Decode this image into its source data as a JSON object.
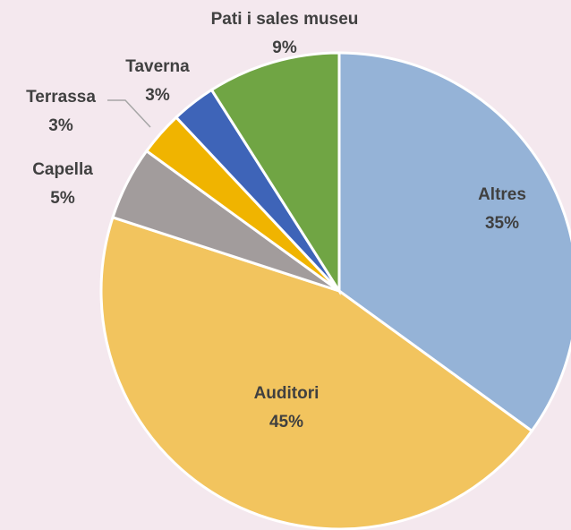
{
  "chart_data": {
    "type": "pie",
    "categories": [
      "Altres",
      "Auditori",
      "Capella",
      "Terrassa",
      "Taverna",
      "Pati i sales museu"
    ],
    "values": [
      35,
      45,
      5,
      3,
      3,
      9
    ],
    "value_labels": [
      "35%",
      "45%",
      "5%",
      "3%",
      "3%",
      "9%"
    ],
    "colors": [
      "#95b3d7",
      "#f2c45e",
      "#a29c9c",
      "#f0b400",
      "#3e64b8",
      "#70a544"
    ]
  }
}
